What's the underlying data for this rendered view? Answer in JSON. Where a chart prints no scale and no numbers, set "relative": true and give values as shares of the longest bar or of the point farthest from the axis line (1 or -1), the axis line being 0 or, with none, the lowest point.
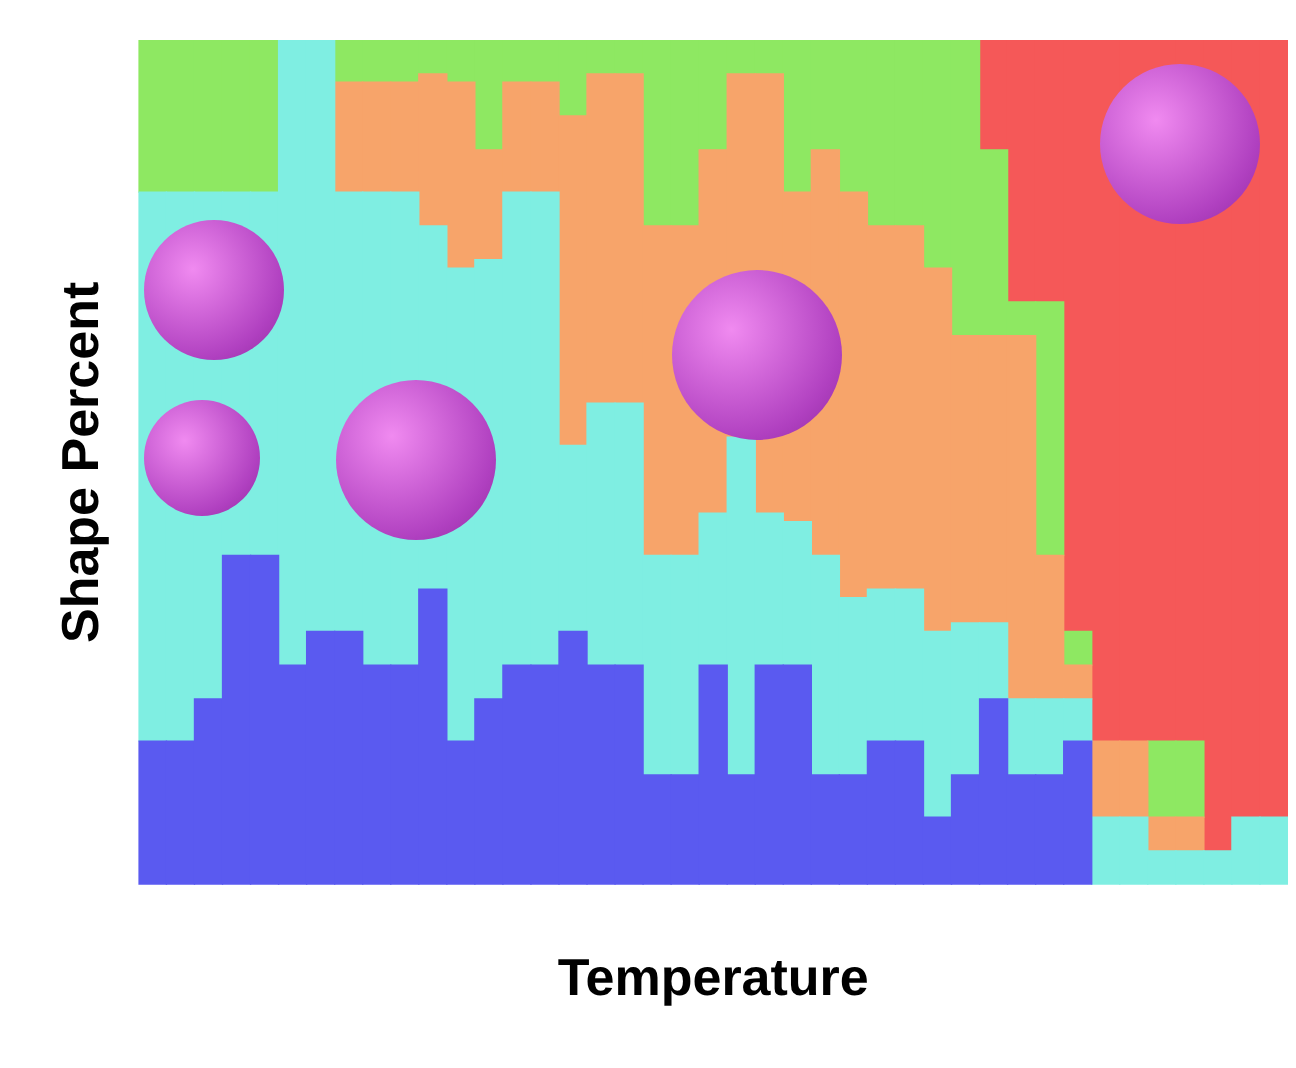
{
  "chart_data": {
    "type": "bar",
    "stacked": true,
    "relative": true,
    "xlabel": "Temperature",
    "ylabel": "Shape Percent",
    "legend": false,
    "categories": [
      null,
      null,
      null,
      null,
      null,
      null,
      null,
      null,
      null,
      null,
      null,
      null,
      null,
      null,
      null,
      null,
      null,
      null,
      null,
      null,
      null,
      null,
      null,
      null,
      null,
      null,
      null,
      null,
      null,
      null,
      null,
      null,
      null,
      null,
      null,
      null,
      null,
      null,
      null,
      null,
      null
    ],
    "series": [
      {
        "color": "#5a5af0",
        "values": [
          0.17,
          0.17,
          0.22,
          0.39,
          0.39,
          0.26,
          0.3,
          0.3,
          0.26,
          0.26,
          0.35,
          0.17,
          0.22,
          0.26,
          0.26,
          0.3,
          0.26,
          0.26,
          0.13,
          0.13,
          0.26,
          0.13,
          0.26,
          0.26,
          0.13,
          0.13,
          0.17,
          0.17,
          0.08,
          0.13,
          0.22,
          0.13,
          0.13,
          0.17,
          null,
          null,
          null,
          null,
          null,
          null,
          null
        ]
      },
      {
        "color": "#7feee2",
        "values": [
          0.65,
          0.65,
          0.6,
          0.43,
          0.43,
          0.74,
          0.7,
          0.52,
          0.56,
          0.56,
          0.43,
          0.56,
          0.52,
          0.56,
          0.56,
          0.22,
          0.31,
          0.31,
          0.26,
          0.26,
          0.18,
          0.4,
          0.18,
          0.17,
          0.26,
          0.21,
          0.18,
          0.18,
          0.22,
          0.18,
          0.09,
          0.09,
          0.09,
          0.05,
          0.08,
          0.08,
          0.04,
          0.04,
          0.04,
          0.08,
          0.08
        ]
      },
      {
        "color": "#f7a46a",
        "values": [
          null,
          null,
          null,
          null,
          null,
          null,
          null,
          0.13,
          0.13,
          0.13,
          0.18,
          0.22,
          0.13,
          0.13,
          0.13,
          0.39,
          0.39,
          0.39,
          0.39,
          0.39,
          0.43,
          0.43,
          0.52,
          0.39,
          0.48,
          0.48,
          0.43,
          0.43,
          0.43,
          0.34,
          0.34,
          0.43,
          0.17,
          0.04,
          0.09,
          0.09,
          0.04,
          0.04,
          null,
          null,
          null
        ]
      },
      {
        "color": "#8ee862",
        "values": [
          0.18,
          0.18,
          0.18,
          0.18,
          0.18,
          null,
          null,
          0.05,
          0.05,
          0.05,
          0.04,
          0.05,
          0.13,
          0.05,
          0.05,
          0.09,
          0.04,
          0.04,
          0.22,
          0.22,
          0.13,
          0.04,
          0.04,
          0.18,
          0.13,
          0.18,
          0.22,
          0.22,
          0.27,
          0.35,
          0.22,
          0.04,
          0.3,
          0.04,
          null,
          null,
          0.09,
          0.09,
          null,
          null,
          null
        ]
      },
      {
        "color": "#f55858",
        "values": [
          null,
          null,
          null,
          null,
          null,
          null,
          null,
          null,
          null,
          null,
          null,
          null,
          null,
          null,
          null,
          null,
          null,
          null,
          null,
          null,
          null,
          null,
          null,
          null,
          null,
          null,
          null,
          null,
          null,
          null,
          0.13,
          0.31,
          0.31,
          0.7,
          0.83,
          0.83,
          0.83,
          0.83,
          0.96,
          0.92,
          0.92
        ]
      }
    ]
  }
}
